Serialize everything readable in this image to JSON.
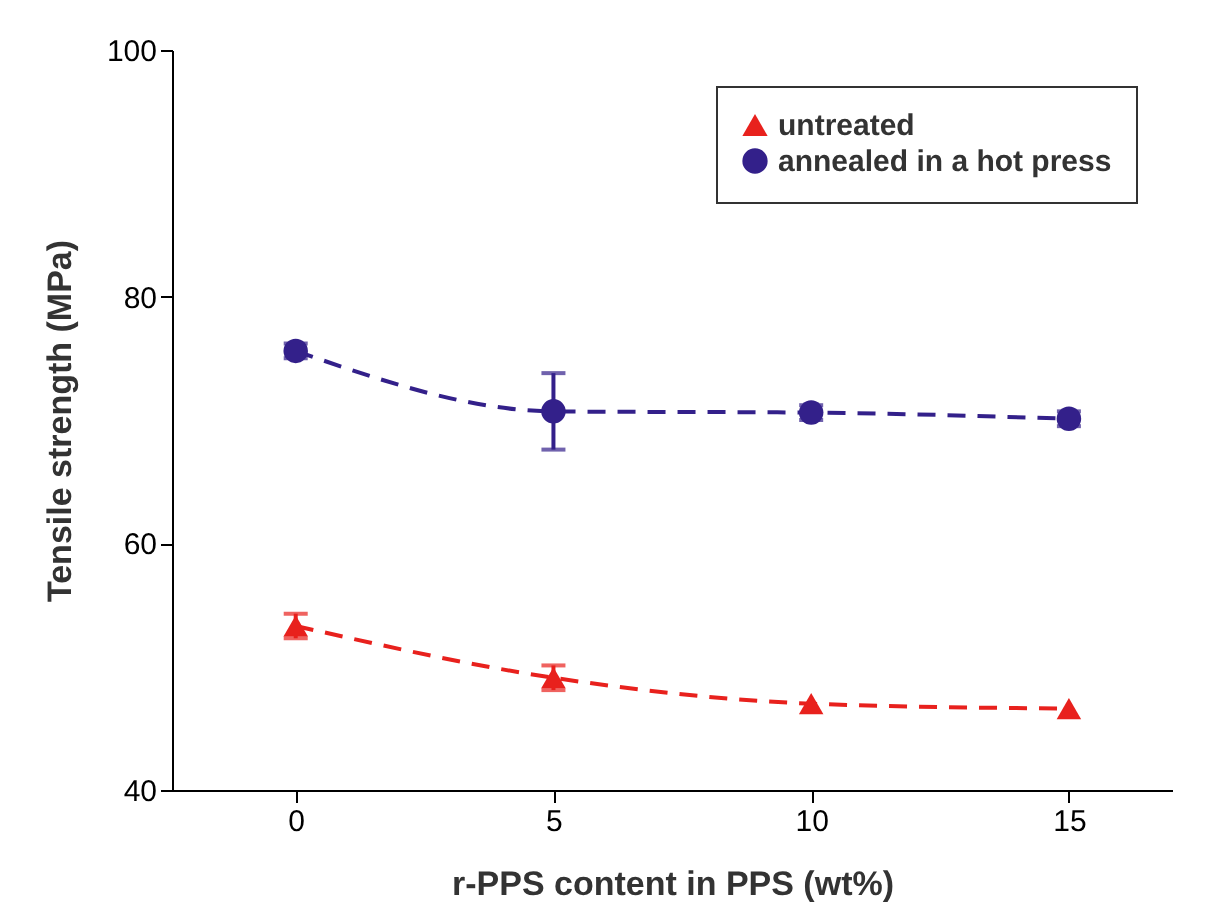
{
  "chart_data": {
    "type": "line",
    "xlabel": "r-PPS content in PPS (wt%)",
    "ylabel": "Tensile strength (MPa)",
    "x": [
      0,
      5,
      10,
      15
    ],
    "xlim": [
      -2.4,
      17
    ],
    "xticks": [
      0,
      5,
      10,
      15
    ],
    "ylim": [
      40,
      100
    ],
    "yticks": [
      40,
      60,
      80,
      100
    ],
    "series": [
      {
        "name": "untreated",
        "color": "#e8211d",
        "marker": "triangle",
        "values": [
          53.3,
          49.1,
          47.0,
          46.6
        ],
        "errors": [
          1,
          1,
          null,
          null
        ]
      },
      {
        "name": "annealed in a hot press",
        "color": "#33208a",
        "marker": "circle",
        "values": [
          75.6,
          70.7,
          70.6,
          70.1
        ],
        "errors": [
          0.6,
          3.1,
          0.6,
          0.6
        ]
      }
    ],
    "line_style": "dashed",
    "grid": false,
    "legend": "top right"
  }
}
